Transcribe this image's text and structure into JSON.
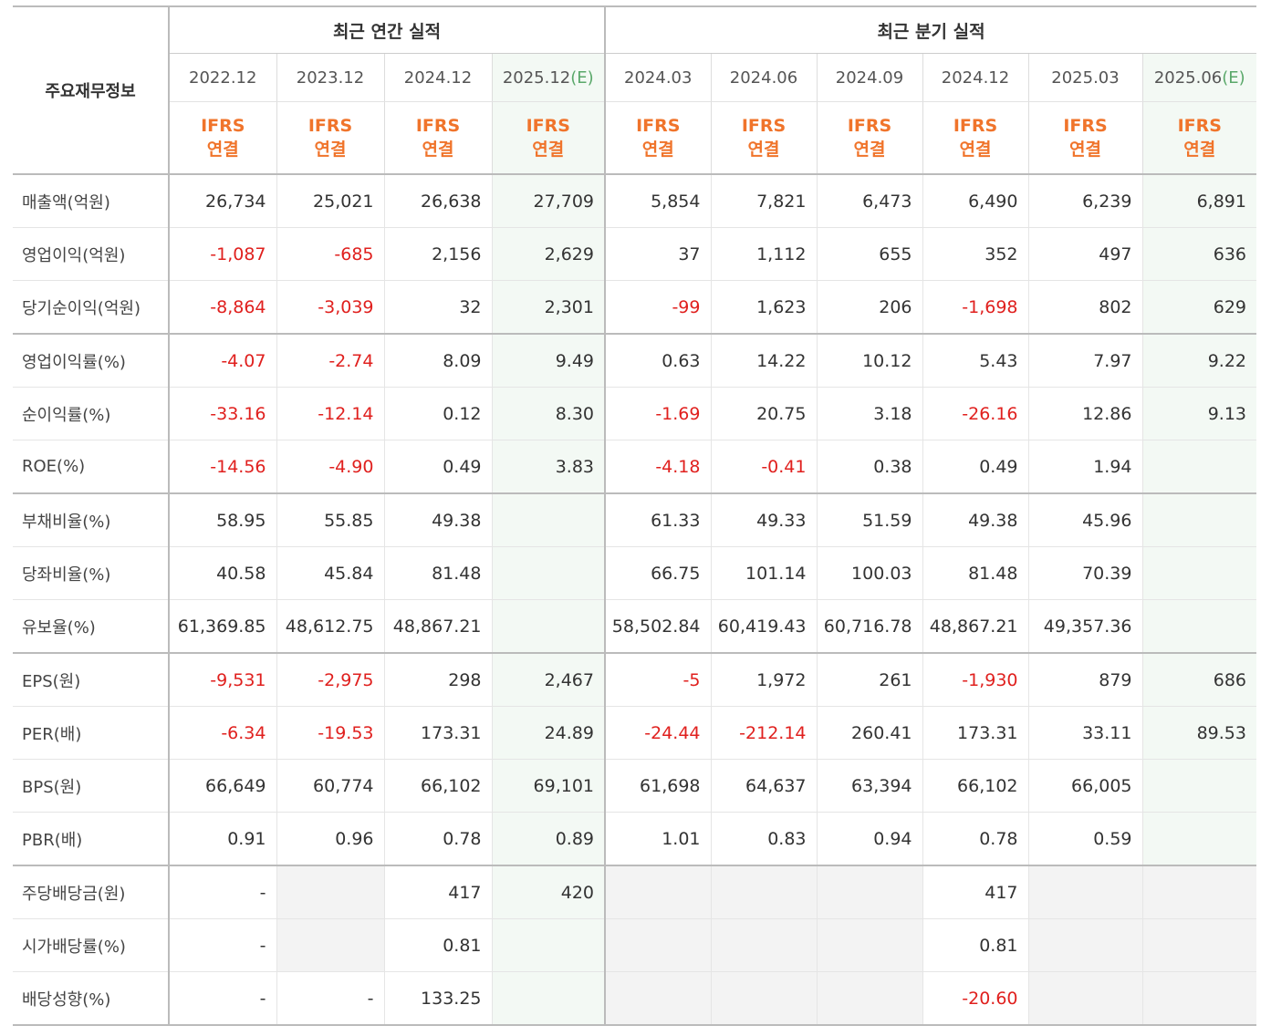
{
  "header": {
    "corner": "주요재무정보",
    "annual_group": "최근 연간 실적",
    "quarter_group": "최근 분기 실적",
    "ifrs_line1": "IFRS",
    "ifrs_line2": "연결",
    "periods": [
      {
        "label": "2022.12",
        "est": ""
      },
      {
        "label": "2023.12",
        "est": ""
      },
      {
        "label": "2024.12",
        "est": ""
      },
      {
        "label": "2025.12",
        "est": "(E)"
      },
      {
        "label": "2024.03",
        "est": ""
      },
      {
        "label": "2024.06",
        "est": ""
      },
      {
        "label": "2024.09",
        "est": ""
      },
      {
        "label": "2024.12",
        "est": ""
      },
      {
        "label": "2025.03",
        "est": ""
      },
      {
        "label": "2025.06",
        "est": "(E)"
      }
    ]
  },
  "rows": [
    {
      "label": "매출액(억원)",
      "values": [
        "26,734",
        "25,021",
        "26,638",
        "27,709",
        "5,854",
        "7,821",
        "6,473",
        "6,490",
        "6,239",
        "6,891"
      ]
    },
    {
      "label": "영업이익(억원)",
      "values": [
        "-1,087",
        "-685",
        "2,156",
        "2,629",
        "37",
        "1,112",
        "655",
        "352",
        "497",
        "636"
      ]
    },
    {
      "label": "당기순이익(억원)",
      "values": [
        "-8,864",
        "-3,039",
        "32",
        "2,301",
        "-99",
        "1,623",
        "206",
        "-1,698",
        "802",
        "629"
      ]
    },
    {
      "label": "영업이익률(%)",
      "values": [
        "-4.07",
        "-2.74",
        "8.09",
        "9.49",
        "0.63",
        "14.22",
        "10.12",
        "5.43",
        "7.97",
        "9.22"
      ]
    },
    {
      "label": "순이익률(%)",
      "values": [
        "-33.16",
        "-12.14",
        "0.12",
        "8.30",
        "-1.69",
        "20.75",
        "3.18",
        "-26.16",
        "12.86",
        "9.13"
      ]
    },
    {
      "label": "ROE(%)",
      "values": [
        "-14.56",
        "-4.90",
        "0.49",
        "3.83",
        "-4.18",
        "-0.41",
        "0.38",
        "0.49",
        "1.94",
        ""
      ]
    },
    {
      "label": "부채비율(%)",
      "values": [
        "58.95",
        "55.85",
        "49.38",
        "",
        "61.33",
        "49.33",
        "51.59",
        "49.38",
        "45.96",
        ""
      ]
    },
    {
      "label": "당좌비율(%)",
      "values": [
        "40.58",
        "45.84",
        "81.48",
        "",
        "66.75",
        "101.14",
        "100.03",
        "81.48",
        "70.39",
        ""
      ]
    },
    {
      "label": "유보율(%)",
      "values": [
        "61,369.85",
        "48,612.75",
        "48,867.21",
        "",
        "58,502.84",
        "60,419.43",
        "60,716.78",
        "48,867.21",
        "49,357.36",
        ""
      ]
    },
    {
      "label": "EPS(원)",
      "values": [
        "-9,531",
        "-2,975",
        "298",
        "2,467",
        "-5",
        "1,972",
        "261",
        "-1,930",
        "879",
        "686"
      ]
    },
    {
      "label": "PER(배)",
      "values": [
        "-6.34",
        "-19.53",
        "173.31",
        "24.89",
        "-24.44",
        "-212.14",
        "260.41",
        "173.31",
        "33.11",
        "89.53"
      ]
    },
    {
      "label": "BPS(원)",
      "values": [
        "66,649",
        "60,774",
        "66,102",
        "69,101",
        "61,698",
        "64,637",
        "63,394",
        "66,102",
        "66,005",
        ""
      ]
    },
    {
      "label": "PBR(배)",
      "values": [
        "0.91",
        "0.96",
        "0.78",
        "0.89",
        "1.01",
        "0.83",
        "0.94",
        "0.78",
        "0.59",
        ""
      ]
    },
    {
      "label": "주당배당금(원)",
      "values": [
        "-",
        "",
        "417",
        "420",
        "",
        "",
        "",
        "417",
        "",
        ""
      ]
    },
    {
      "label": "시가배당률(%)",
      "values": [
        "-",
        "",
        "0.81",
        "",
        "",
        "",
        "",
        "0.81",
        "",
        ""
      ]
    },
    {
      "label": "배당성향(%)",
      "values": [
        "-",
        "-",
        "133.25",
        "",
        "",
        "",
        "",
        "-20.60",
        "",
        ""
      ]
    }
  ]
}
